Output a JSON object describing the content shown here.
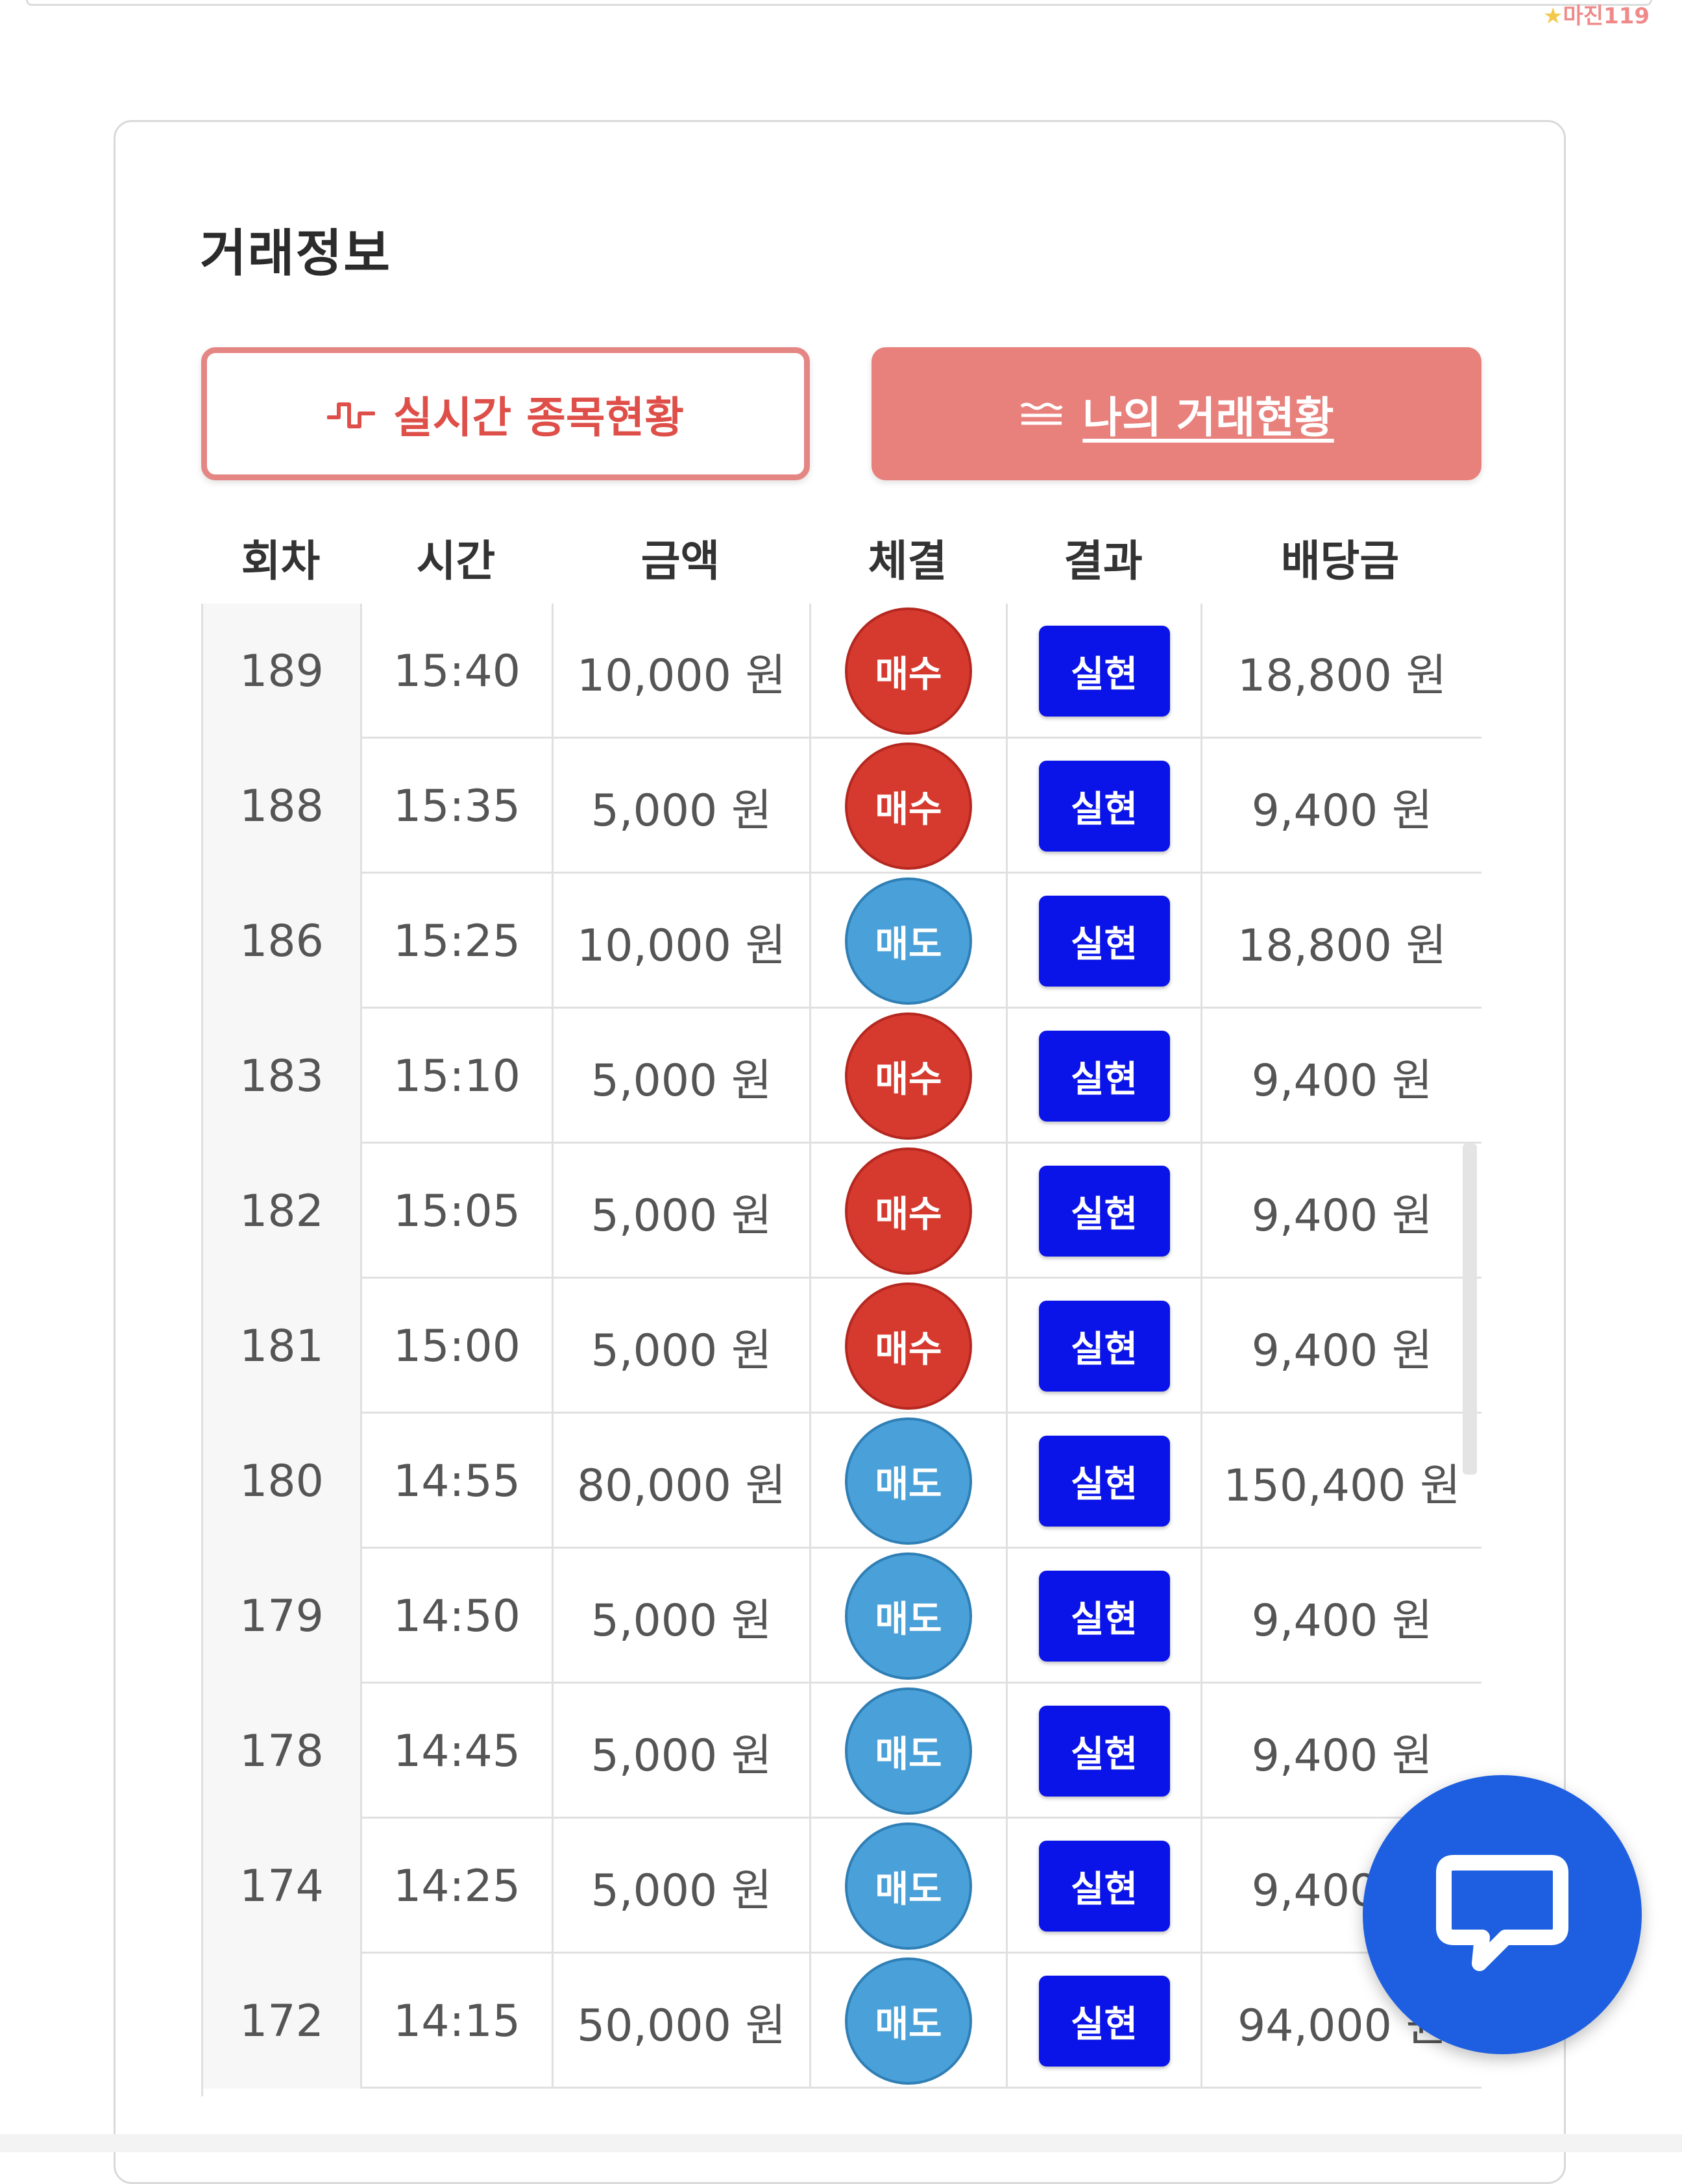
{
  "watermark": {
    "brand": "마진",
    "suffix": "119",
    "tagline": ""
  },
  "section": {
    "title": "거래정보"
  },
  "buttons": {
    "live": {
      "label": "실시간 종목현황",
      "icon": "pulse-icon",
      "color": "#df4f49"
    },
    "mine": {
      "label": "나의 거래현황",
      "icon": "list-lines-icon",
      "color": "#e8807c"
    }
  },
  "table": {
    "headers": [
      "회차",
      "시간",
      "금액",
      "체결",
      "결과",
      "배당금"
    ],
    "rows": [
      {
        "round": "189",
        "time": "15:40",
        "amount": "10,000 원",
        "trade": "매수",
        "result": "실현",
        "payout": "18,800 원"
      },
      {
        "round": "188",
        "time": "15:35",
        "amount": "5,000 원",
        "trade": "매수",
        "result": "실현",
        "payout": "9,400 원"
      },
      {
        "round": "186",
        "time": "15:25",
        "amount": "10,000 원",
        "trade": "매도",
        "result": "실현",
        "payout": "18,800 원"
      },
      {
        "round": "183",
        "time": "15:10",
        "amount": "5,000 원",
        "trade": "매수",
        "result": "실현",
        "payout": "9,400 원"
      },
      {
        "round": "182",
        "time": "15:05",
        "amount": "5,000 원",
        "trade": "매수",
        "result": "실현",
        "payout": "9,400 원"
      },
      {
        "round": "181",
        "time": "15:00",
        "amount": "5,000 원",
        "trade": "매수",
        "result": "실현",
        "payout": "9,400 원"
      },
      {
        "round": "180",
        "time": "14:55",
        "amount": "80,000 원",
        "trade": "매도",
        "result": "실현",
        "payout": "150,400 원"
      },
      {
        "round": "179",
        "time": "14:50",
        "amount": "5,000 원",
        "trade": "매도",
        "result": "실현",
        "payout": "9,400 원"
      },
      {
        "round": "178",
        "time": "14:45",
        "amount": "5,000 원",
        "trade": "매도",
        "result": "실현",
        "payout": "9,400 원"
      },
      {
        "round": "174",
        "time": "14:25",
        "amount": "5,000 원",
        "trade": "매도",
        "result": "실현",
        "payout": "9,400 원"
      },
      {
        "round": "172",
        "time": "14:15",
        "amount": "50,000 원",
        "trade": "매도",
        "result": "실현",
        "payout": "94,000 원"
      }
    ]
  },
  "colors": {
    "buy": "#d63a2f",
    "sell": "#4aa0d8",
    "result": "#0a14e8",
    "chat": "#1d5fe0"
  },
  "chat": {
    "icon": "chat-bubble-icon"
  }
}
